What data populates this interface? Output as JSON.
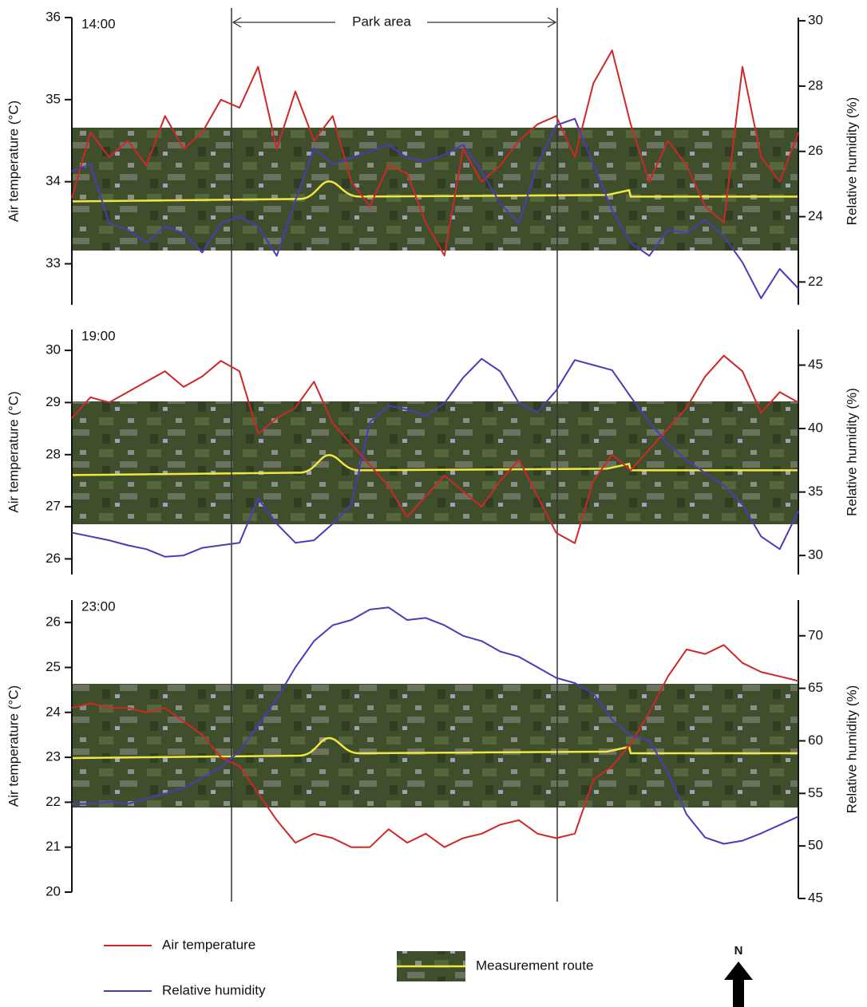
{
  "chart_data": [
    {
      "type": "line",
      "panel_label": "14:00",
      "annotation": "Park area",
      "ylabel": "Air temperature (°C)",
      "y2label": "Relative humidity (%)",
      "ylim": [
        32.5,
        36
      ],
      "yticks": [
        33,
        34,
        35,
        36
      ],
      "y2lim": [
        21.3,
        30.1
      ],
      "y2ticks": [
        22,
        24,
        26,
        28,
        30
      ],
      "series": [
        {
          "name": "Air temperature",
          "color": "#d0262a",
          "values": [
            33.8,
            34.6,
            34.3,
            34.5,
            34.2,
            34.8,
            34.4,
            34.6,
            35.0,
            34.9,
            35.4,
            34.4,
            35.1,
            34.5,
            34.8,
            34.0,
            33.7,
            34.2,
            34.1,
            33.5,
            33.1,
            34.4,
            34.0,
            34.2,
            34.5,
            34.7,
            34.8,
            34.3,
            35.2,
            35.6,
            34.7,
            34.0,
            34.5,
            34.2,
            33.7,
            33.5,
            35.4,
            34.3,
            34.0,
            34.6
          ]
        },
        {
          "name": "Relative humidity",
          "color": "#4a3bb8",
          "axis": "y2",
          "values": [
            25.4,
            25.6,
            23.8,
            23.6,
            23.2,
            23.7,
            23.5,
            22.9,
            23.8,
            24.0,
            23.7,
            22.8,
            24.5,
            26.1,
            25.6,
            25.8,
            26.0,
            26.2,
            25.8,
            25.7,
            25.9,
            26.2,
            25.4,
            24.4,
            23.8,
            25.6,
            26.8,
            27.0,
            25.6,
            24.2,
            23.2,
            22.8,
            23.6,
            23.5,
            23.9,
            23.4,
            22.6,
            21.5,
            22.4,
            21.8
          ]
        }
      ]
    },
    {
      "type": "line",
      "panel_label": "19:00",
      "ylabel": "Air temperature (°C)",
      "y2label": "Relative humidity (%)",
      "ylim": [
        25.7,
        30.4
      ],
      "yticks": [
        26,
        27,
        28,
        29,
        30
      ],
      "y2lim": [
        28.5,
        47.8
      ],
      "y2ticks": [
        30,
        35,
        40,
        45
      ],
      "series": [
        {
          "name": "Air temperature",
          "color": "#d0262a",
          "values": [
            28.7,
            29.1,
            29.0,
            29.2,
            29.4,
            29.6,
            29.3,
            29.5,
            29.8,
            29.6,
            28.4,
            28.7,
            28.9,
            29.4,
            28.6,
            28.2,
            27.8,
            27.4,
            26.8,
            27.2,
            27.6,
            27.3,
            27.0,
            27.5,
            27.9,
            27.2,
            26.5,
            26.3,
            27.5,
            28.0,
            27.7,
            28.1,
            28.5,
            28.9,
            29.5,
            29.9,
            29.6,
            28.8,
            29.2,
            29.0
          ]
        },
        {
          "name": "Relative humidity",
          "color": "#4a3bb8",
          "axis": "y2",
          "values": [
            31.8,
            31.5,
            31.2,
            30.8,
            30.5,
            29.9,
            30.0,
            30.6,
            30.8,
            31.0,
            34.5,
            32.5,
            31.0,
            31.2,
            32.5,
            34.0,
            40.5,
            41.8,
            41.5,
            41.0,
            42.0,
            44.0,
            45.5,
            44.5,
            42.0,
            41.3,
            43.0,
            45.4,
            45.0,
            44.6,
            42.5,
            40.5,
            38.8,
            37.5,
            36.5,
            35.5,
            34.0,
            31.5,
            30.5,
            33.5
          ]
        }
      ]
    },
    {
      "type": "line",
      "panel_label": "23:00",
      "ylabel": "Air temperature (°C)",
      "y2label": "Relative humidity (%)",
      "ylim": [
        20,
        26.5
      ],
      "yticks": [
        20,
        21,
        22,
        23,
        24,
        25,
        26
      ],
      "y2lim": [
        45,
        73.4
      ],
      "y2ticks": [
        45,
        50,
        55,
        60,
        65,
        70
      ],
      "series": [
        {
          "name": "Air temperature",
          "color": "#d0262a",
          "values": [
            24.1,
            24.2,
            24.1,
            24.1,
            24.0,
            24.1,
            23.8,
            23.5,
            23.0,
            22.8,
            22.2,
            21.6,
            21.1,
            21.3,
            21.2,
            21.0,
            21.0,
            21.4,
            21.1,
            21.3,
            21.0,
            21.2,
            21.3,
            21.5,
            21.6,
            21.3,
            21.2,
            21.3,
            22.5,
            22.8,
            23.3,
            24.0,
            24.8,
            25.4,
            25.3,
            25.5,
            25.1,
            24.9,
            24.8,
            24.7
          ]
        },
        {
          "name": "Relative humidity",
          "color": "#4a3bb8",
          "axis": "y2",
          "values": [
            54.0,
            54.0,
            54.2,
            54.0,
            54.5,
            55.0,
            55.5,
            56.5,
            57.5,
            59.0,
            61.5,
            64.0,
            67.0,
            69.5,
            71.0,
            71.5,
            72.5,
            72.7,
            71.5,
            71.7,
            71.0,
            70.0,
            69.5,
            68.5,
            68.0,
            67.0,
            66.0,
            65.5,
            64.5,
            62.0,
            60.5,
            60.0,
            57.0,
            53.0,
            50.8,
            50.2,
            50.5,
            51.2,
            52.0,
            52.8
          ]
        }
      ]
    }
  ],
  "route_label": "Measurement route",
  "north_label": "N"
}
